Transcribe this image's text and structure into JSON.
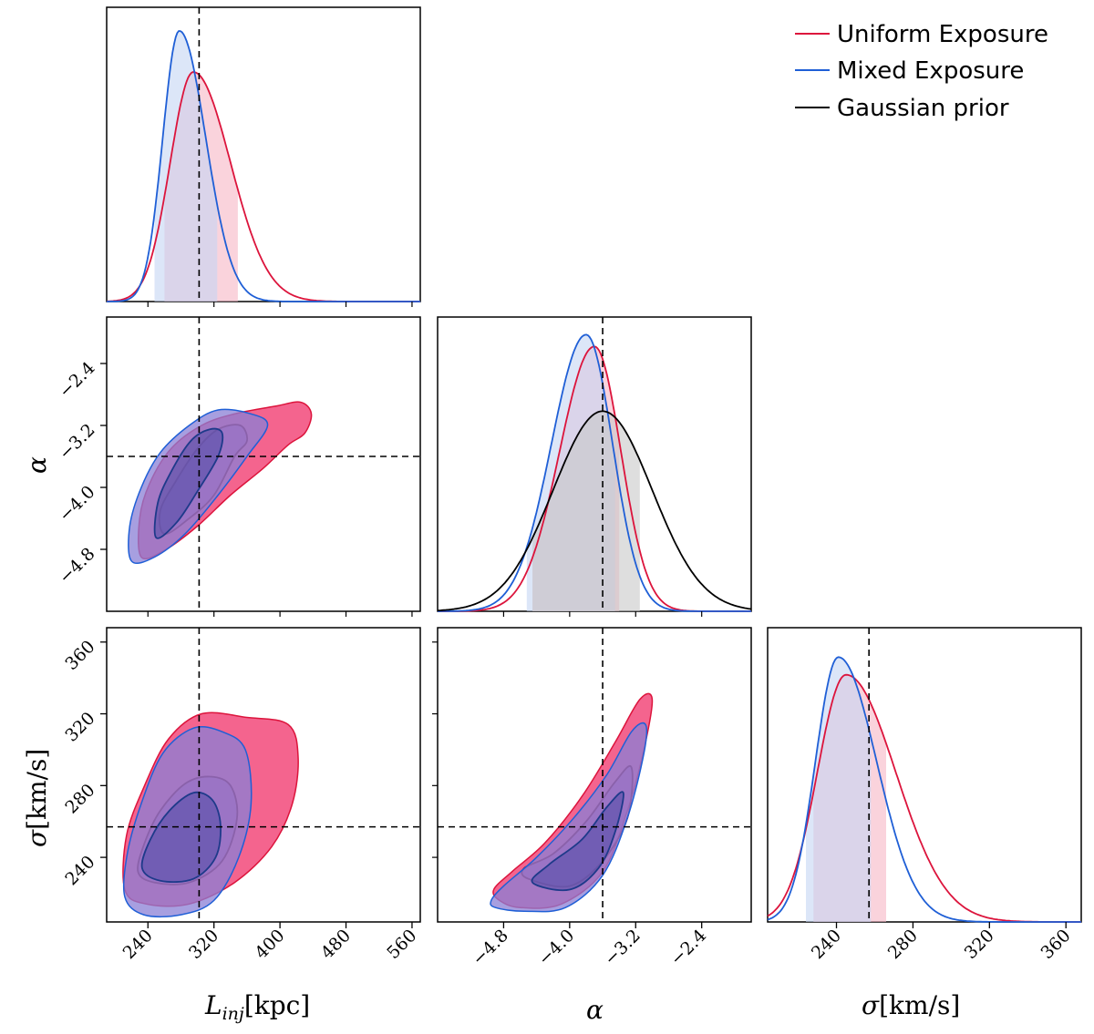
{
  "colors": {
    "uniform": "#dc143c",
    "mixed": "#1f5fd6",
    "prior": "#000000",
    "uniform_fill": "#f2497a",
    "mixed_fill": "#8a7fd6",
    "uniform_band": "#f6b6c4",
    "mixed_band": "#c4d6f4",
    "prior_band": "#c8c8c8",
    "truth_line": "#000000"
  },
  "legend": {
    "items": [
      {
        "label": "Uniform Exposure",
        "color": "#dc143c"
      },
      {
        "label": "Mixed Exposure",
        "color": "#1f5fd6"
      },
      {
        "label": "Gaussian prior",
        "color": "#000000"
      }
    ]
  },
  "axes": {
    "L": {
      "label_main": "L",
      "label_sub": "inj",
      "label_unit": "[kpc]",
      "range": [
        190,
        570
      ],
      "ticks": [
        "240",
        "320",
        "400",
        "480",
        "560"
      ],
      "tick_values": [
        240,
        320,
        400,
        480,
        560
      ],
      "truth": 302
    },
    "alpha": {
      "label": "α",
      "range": [
        -5.6,
        -1.8
      ],
      "ticks": [
        "−4.8",
        "−4.0",
        "−3.2",
        "−2.4"
      ],
      "tick_values": [
        -4.8,
        -4.0,
        -3.2,
        -2.4
      ],
      "truth": -3.6
    },
    "sigma": {
      "label_main": "σ",
      "label_unit": "[km/s]",
      "range": [
        204,
        368
      ],
      "ticks": [
        "240",
        "280",
        "320",
        "360"
      ],
      "tick_values": [
        240,
        280,
        320,
        360
      ],
      "truth": 257
    }
  },
  "chart_data": {
    "type": "corner",
    "parameters": [
      "L_inj [kpc]",
      "α",
      "σ [km/s]"
    ],
    "truth": {
      "L_inj": 302,
      "alpha": -3.6,
      "sigma": 257
    },
    "marginals": [
      {
        "parameter": "L_inj",
        "series": [
          {
            "name": "Uniform Exposure",
            "mode": 295,
            "sigma_lo": 28,
            "sigma_hi": 45,
            "peak": 0.78,
            "band": [
              260,
              349
            ]
          },
          {
            "name": "Mixed Exposure",
            "mode": 278,
            "sigma_lo": 20,
            "sigma_hi": 32,
            "peak": 0.92,
            "band": [
              248,
              324
            ]
          }
        ]
      },
      {
        "parameter": "alpha",
        "series": [
          {
            "name": "Uniform Exposure",
            "mode": -3.7,
            "sigma_lo": 0.42,
            "sigma_hi": 0.32,
            "peak": 0.9,
            "band": [
              -4.45,
              -3.4
            ]
          },
          {
            "name": "Mixed Exposure",
            "mode": -3.8,
            "sigma_lo": 0.42,
            "sigma_hi": 0.32,
            "peak": 0.94,
            "band": [
              -4.52,
              -3.45
            ]
          },
          {
            "name": "Gaussian prior",
            "mode": -3.6,
            "sigma_lo": 0.6,
            "sigma_hi": 0.6,
            "peak": 0.68,
            "band": [
              -4.45,
              -3.15
            ]
          }
        ]
      },
      {
        "parameter": "sigma",
        "series": [
          {
            "name": "Uniform Exposure",
            "mode": 245,
            "sigma_lo": 15,
            "sigma_hi": 26,
            "peak": 0.84,
            "band": [
              228,
              266
            ]
          },
          {
            "name": "Mixed Exposure",
            "mode": 241,
            "sigma_lo": 12,
            "sigma_hi": 20,
            "peak": 0.9,
            "band": [
              224,
              258
            ]
          }
        ]
      }
    ],
    "joint": [
      {
        "x": "L_inj",
        "y": "alpha",
        "series": [
          {
            "name": "Uniform Exposure",
            "levels": [
              [
                [
                  260,
                  -4.6
                ],
                [
                  290,
                  -4.4
                ],
                [
                  320,
                  -4.1
                ],
                [
                  345,
                  -3.6
                ],
                [
                  360,
                  -3.4
                ],
                [
                  352,
                  -3.2
                ],
                [
                  325,
                  -3.25
                ],
                [
                  300,
                  -3.5
                ],
                [
                  275,
                  -3.9
                ],
                [
                  255,
                  -4.3
                ]
              ],
              [
                [
                  232,
                  -4.9
                ],
                [
                  262,
                  -4.8
                ],
                [
                  300,
                  -4.5
                ],
                [
                  340,
                  -4.1
                ],
                [
                  380,
                  -3.75
                ],
                [
                  410,
                  -3.45
                ],
                [
                  430,
                  -3.3
                ],
                [
                  438,
                  -3.05
                ],
                [
                  425,
                  -2.9
                ],
                [
                  395,
                  -2.95
                ],
                [
                  345,
                  -3.05
                ],
                [
                  305,
                  -3.2
                ],
                [
                  268,
                  -3.5
                ],
                [
                  242,
                  -3.95
                ],
                [
                  230,
                  -4.4
                ]
              ]
            ]
          },
          {
            "name": "Mixed Exposure",
            "levels": [
              [
                [
                  250,
                  -4.65
                ],
                [
                  275,
                  -4.45
                ],
                [
                  300,
                  -4.05
                ],
                [
                  325,
                  -3.6
                ],
                [
                  330,
                  -3.3
                ],
                [
                  315,
                  -3.25
                ],
                [
                  292,
                  -3.4
                ],
                [
                  268,
                  -3.8
                ],
                [
                  252,
                  -4.2
                ]
              ],
              [
                [
                  220,
                  -4.95
                ],
                [
                  248,
                  -4.9
                ],
                [
                  285,
                  -4.6
                ],
                [
                  325,
                  -4.1
                ],
                [
                  360,
                  -3.6
                ],
                [
                  385,
                  -3.2
                ],
                [
                  365,
                  -3.05
                ],
                [
                  325,
                  -3.0
                ],
                [
                  290,
                  -3.2
                ],
                [
                  255,
                  -3.55
                ],
                [
                  232,
                  -4.0
                ],
                [
                  218,
                  -4.5
                ]
              ]
            ]
          }
        ]
      },
      {
        "x": "L_inj",
        "y": "sigma",
        "series": [
          {
            "name": "Uniform Exposure",
            "levels": [
              [
                [
                  228,
                  232
                ],
                [
                  248,
                  226
                ],
                [
                  290,
                  226
                ],
                [
                  330,
                  238
                ],
                [
                  348,
                  262
                ],
                [
                  340,
                  280
                ],
                [
                  315,
                  285
                ],
                [
                  285,
                  281
                ],
                [
                  255,
                  266
                ],
                [
                  236,
                  248
                ]
              ],
              [
                [
                  212,
                  222
                ],
                [
                  238,
                  214
                ],
                [
                  290,
                  214
                ],
                [
                  345,
                  226
                ],
                [
                  390,
                  246
                ],
                [
                  415,
                  270
                ],
                [
                  422,
                  296
                ],
                [
                  410,
                  314
                ],
                [
                  360,
                  318
                ],
                [
                  305,
                  320
                ],
                [
                  265,
                  306
                ],
                [
                  236,
                  280
                ],
                [
                  214,
                  252
                ]
              ]
            ]
          },
          {
            "name": "Mixed Exposure",
            "levels": [
              [
                [
                  233,
                  234
                ],
                [
                  255,
                  227
                ],
                [
                  295,
                  228
                ],
                [
                  322,
                  240
                ],
                [
                  328,
                  258
                ],
                [
                  318,
                  272
                ],
                [
                  295,
                  276
                ],
                [
                  266,
                  266
                ],
                [
                  243,
                  250
                ]
              ],
              [
                [
                  212,
                  218
                ],
                [
                  235,
                  208
                ],
                [
                  280,
                  208
                ],
                [
                  320,
                  216
                ],
                [
                  350,
                  240
                ],
                [
                  365,
                  270
                ],
                [
                  358,
                  300
                ],
                [
                  330,
                  310
                ],
                [
                  295,
                  312
                ],
                [
                  258,
                  298
                ],
                [
                  232,
                  270
                ],
                [
                  215,
                  242
                ]
              ]
            ]
          }
        ]
      },
      {
        "x": "alpha",
        "y": "sigma",
        "series": [
          {
            "name": "Uniform Exposure",
            "levels": [
              [
                [
                  -4.5,
                  228
                ],
                [
                  -4.0,
                  224
                ],
                [
                  -3.6,
                  238
                ],
                [
                  -3.3,
                  262
                ],
                [
                  -3.25,
                  290
                ],
                [
                  -3.45,
                  282
                ],
                [
                  -3.8,
                  260
                ],
                [
                  -4.2,
                  242
                ],
                [
                  -4.55,
                  234
                ]
              ],
              [
                [
                  -4.85,
                  216
                ],
                [
                  -4.6,
                  212
                ],
                [
                  -4.1,
                  214
                ],
                [
                  -3.6,
                  232
                ],
                [
                  -3.3,
                  266
                ],
                [
                  -3.1,
                  300
                ],
                [
                  -3.0,
                  328
                ],
                [
                  -3.15,
                  328
                ],
                [
                  -3.45,
                  304
                ],
                [
                  -3.85,
                  274
                ],
                [
                  -4.3,
                  248
                ],
                [
                  -4.7,
                  232
                ],
                [
                  -4.92,
                  222
                ]
              ]
            ]
          },
          {
            "name": "Mixed Exposure",
            "levels": [
              [
                [
                  -4.45,
                  226
                ],
                [
                  -4.0,
                  222
                ],
                [
                  -3.65,
                  234
                ],
                [
                  -3.45,
                  254
                ],
                [
                  -3.35,
                  276
                ],
                [
                  -3.55,
                  268
                ],
                [
                  -3.85,
                  250
                ],
                [
                  -4.25,
                  236
                ]
              ],
              [
                [
                  -4.9,
                  212
                ],
                [
                  -4.55,
                  210
                ],
                [
                  -4.05,
                  212
                ],
                [
                  -3.6,
                  230
                ],
                [
                  -3.3,
                  262
                ],
                [
                  -3.1,
                  298
                ],
                [
                  -3.08,
                  314
                ],
                [
                  -3.25,
                  310
                ],
                [
                  -3.55,
                  286
                ],
                [
                  -3.95,
                  262
                ],
                [
                  -4.4,
                  240
                ],
                [
                  -4.8,
                  224
                ],
                [
                  -4.95,
                  216
                ]
              ]
            ]
          }
        ]
      }
    ]
  }
}
